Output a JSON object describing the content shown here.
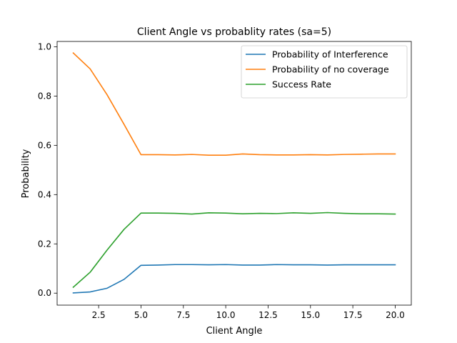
{
  "chart_data": {
    "type": "line",
    "title": "Client Angle vs probablity rates (sa=5)",
    "xlabel": "Client Angle",
    "ylabel": "Probability",
    "xlim": [
      0.05,
      20.95
    ],
    "ylim": [
      -0.0486,
      1.0216
    ],
    "xticks": [
      2.5,
      5.0,
      7.5,
      10.0,
      12.5,
      15.0,
      17.5,
      20.0
    ],
    "xtick_labels": [
      "2.5",
      "5.0",
      "7.5",
      "10.0",
      "12.5",
      "15.0",
      "17.5",
      "20.0"
    ],
    "yticks": [
      0.0,
      0.2,
      0.4,
      0.6,
      0.8,
      1.0
    ],
    "ytick_labels": [
      "0.0",
      "0.2",
      "0.4",
      "0.6",
      "0.8",
      "1.0"
    ],
    "grid": false,
    "legend_position": "top-right",
    "x": [
      1,
      2,
      3,
      4,
      5,
      6,
      7,
      8,
      9,
      10,
      11,
      12,
      13,
      14,
      15,
      16,
      17,
      18,
      19,
      20
    ],
    "series": [
      {
        "name": "Probability of Interference",
        "color": "#1f77b4",
        "values": [
          0.001,
          0.005,
          0.02,
          0.056,
          0.113,
          0.114,
          0.116,
          0.116,
          0.115,
          0.116,
          0.114,
          0.114,
          0.116,
          0.115,
          0.115,
          0.114,
          0.115,
          0.115,
          0.115,
          0.115
        ]
      },
      {
        "name": "Probability of no coverage",
        "color": "#ff7f0e",
        "values": [
          0.975,
          0.91,
          0.805,
          0.685,
          0.562,
          0.562,
          0.561,
          0.563,
          0.56,
          0.56,
          0.565,
          0.562,
          0.561,
          0.561,
          0.562,
          0.561,
          0.563,
          0.564,
          0.565,
          0.565
        ]
      },
      {
        "name": "Success Rate",
        "color": "#2ca02c",
        "values": [
          0.024,
          0.085,
          0.175,
          0.259,
          0.325,
          0.325,
          0.324,
          0.321,
          0.326,
          0.325,
          0.322,
          0.324,
          0.323,
          0.326,
          0.324,
          0.327,
          0.324,
          0.322,
          0.322,
          0.321
        ]
      }
    ]
  }
}
